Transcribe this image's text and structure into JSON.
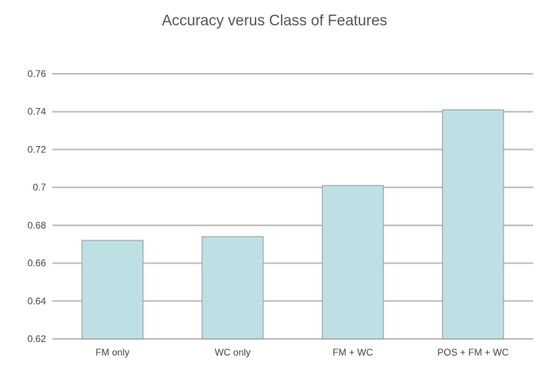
{
  "chart_data": {
    "type": "bar",
    "title": "Accuracy verus Class of Features",
    "categories": [
      "FM only",
      "WC only",
      "FM + WC",
      "POS + FM + WC"
    ],
    "values": [
      0.672,
      0.674,
      0.701,
      0.741
    ],
    "xlabel": "",
    "ylabel": "",
    "ylim": [
      0.62,
      0.76
    ],
    "yticks": [
      "0.62",
      "0.64",
      "0.66",
      "0.68",
      "0.7",
      "0.72",
      "0.74",
      "0.76"
    ],
    "grid": true,
    "legend": "none",
    "colors": {
      "bar": "#bde0e4",
      "bar_edge": "#9a9a9a",
      "grid": "#bdbdbd",
      "text": "#444444",
      "title": "#555555"
    }
  }
}
